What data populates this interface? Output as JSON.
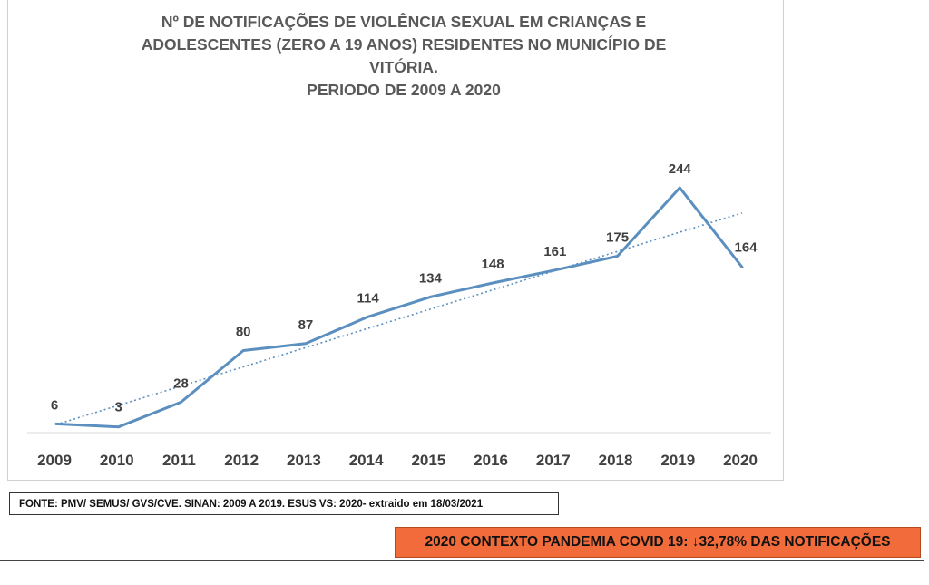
{
  "chart_data": {
    "type": "line",
    "title_lines": [
      "Nº DE NOTIFICAÇÕES DE VIOLÊNCIA SEXUAL EM CRIANÇAS E",
      "ADOLESCENTES (ZERO A 19 ANOS) RESIDENTES NO MUNICÍPIO DE",
      "VITÓRIA.",
      "PERIODO DE 2009 A 2020"
    ],
    "categories": [
      "2009",
      "2010",
      "2011",
      "2012",
      "2013",
      "2014",
      "2015",
      "2016",
      "2017",
      "2018",
      "2019",
      "2020"
    ],
    "series": [
      {
        "values": [
          6,
          3,
          28,
          80,
          87,
          114,
          134,
          148,
          161,
          175,
          244,
          164
        ],
        "color": "#5b8fbf",
        "trendline": "linear"
      }
    ],
    "ylim": [
      0,
      250
    ],
    "grid": false,
    "data_labels": true
  },
  "source_note": "FONTE: PMV/ SEMUS/ GVS/CVE.  SINAN: 2009 A 2019.  ESUS  VS: 2020-  extraido em 18/03/2021",
  "pandemic_note": "2020 CONTEXTO PANDEMIA COVID 19: ↓32,78% DAS NOTIFICAÇÕES"
}
